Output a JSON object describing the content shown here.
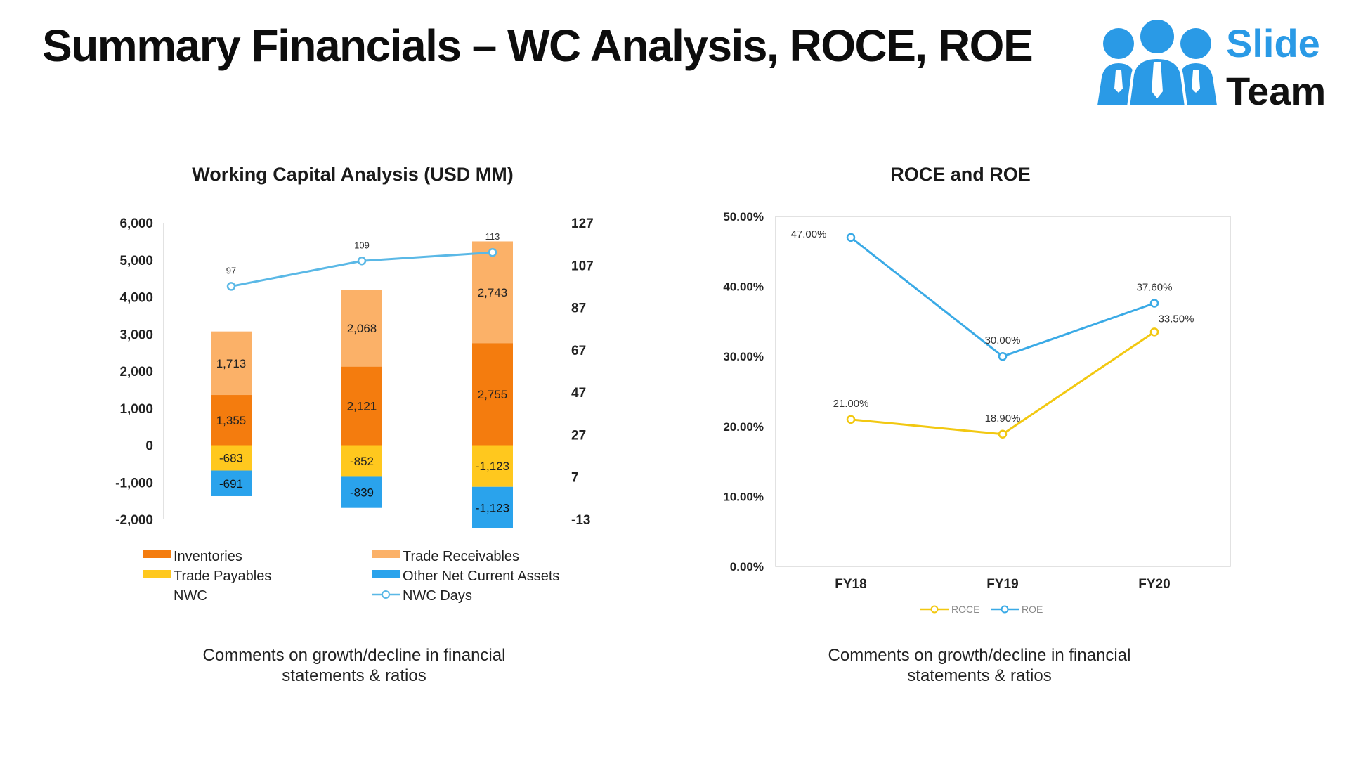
{
  "slide": {
    "title": "Summary Financials – WC Analysis, ROCE, ROE",
    "logo": {
      "word1": "Slide",
      "word2": "Team",
      "icon": "people-team-icon"
    },
    "colors": {
      "brand_blue": "#2a9ae6"
    }
  },
  "chart_data": [
    {
      "type": "bar",
      "title": "Working Capital Analysis (USD MM)",
      "categories": [
        "",
        "",
        ""
      ],
      "ylim": [
        -2000,
        6000
      ],
      "y_ticks": [
        "6,000",
        "5,000",
        "4,000",
        "3,000",
        "2,000",
        "1,000",
        "0",
        "-1,000",
        "-2,000"
      ],
      "y2lim": [
        -13,
        127
      ],
      "y2_ticks": [
        "127",
        "107",
        "87",
        "67",
        "47",
        "27",
        "7",
        "-13"
      ],
      "series": [
        {
          "name": "Inventories",
          "values": [
            1355,
            2121,
            2755
          ],
          "labels": [
            "1,355",
            "2,121",
            "2,755"
          ],
          "color": "#f47c0e"
        },
        {
          "name": "Trade Receivables",
          "values": [
            1713,
            2068,
            2743
          ],
          "labels": [
            "1,713",
            "2,068",
            "2,743"
          ],
          "color": "#fbb168"
        },
        {
          "name": "Trade Payables",
          "values": [
            -683,
            -852,
            -1123
          ],
          "labels": [
            "-683",
            "-852",
            "-1,123"
          ],
          "color": "#ffc81e"
        },
        {
          "name": "Other Net Current Assets",
          "values": [
            -691,
            -839,
            -1123
          ],
          "labels": [
            "-691",
            "-839",
            "-1,123"
          ],
          "color": "#2aa3ec"
        },
        {
          "name": "NWC Days",
          "type": "line",
          "axis": "secondary",
          "values": [
            97,
            109,
            113
          ],
          "labels": [
            "97",
            "109",
            "113"
          ],
          "color": "#5ab8e6"
        }
      ],
      "legend_extra": "NWC",
      "grid": false,
      "legend": "bottom"
    },
    {
      "type": "line",
      "title": "ROCE and ROE",
      "categories": [
        "FY18",
        "FY19",
        "FY20"
      ],
      "ylim": [
        0,
        50
      ],
      "y_ticks": [
        "50.00%",
        "40.00%",
        "30.00%",
        "20.00%",
        "10.00%",
        "0.00%"
      ],
      "series": [
        {
          "name": "ROCE",
          "values": [
            21.0,
            18.9,
            33.5
          ],
          "labels": [
            "21.00%",
            "18.90%",
            "33.50%"
          ],
          "color": "#f2c811"
        },
        {
          "name": "ROE",
          "values": [
            47.0,
            30.0,
            37.6
          ],
          "labels": [
            "47.00%",
            "30.00%",
            "37.60%"
          ],
          "color": "#3aaae6"
        }
      ],
      "grid": false,
      "legend": "bottom"
    }
  ],
  "comments": {
    "left_line1": "Comments on growth/decline in financial",
    "left_line2": "statements & ratios",
    "right_line1": "Comments on growth/decline in financial",
    "right_line2": "statements & ratios"
  }
}
